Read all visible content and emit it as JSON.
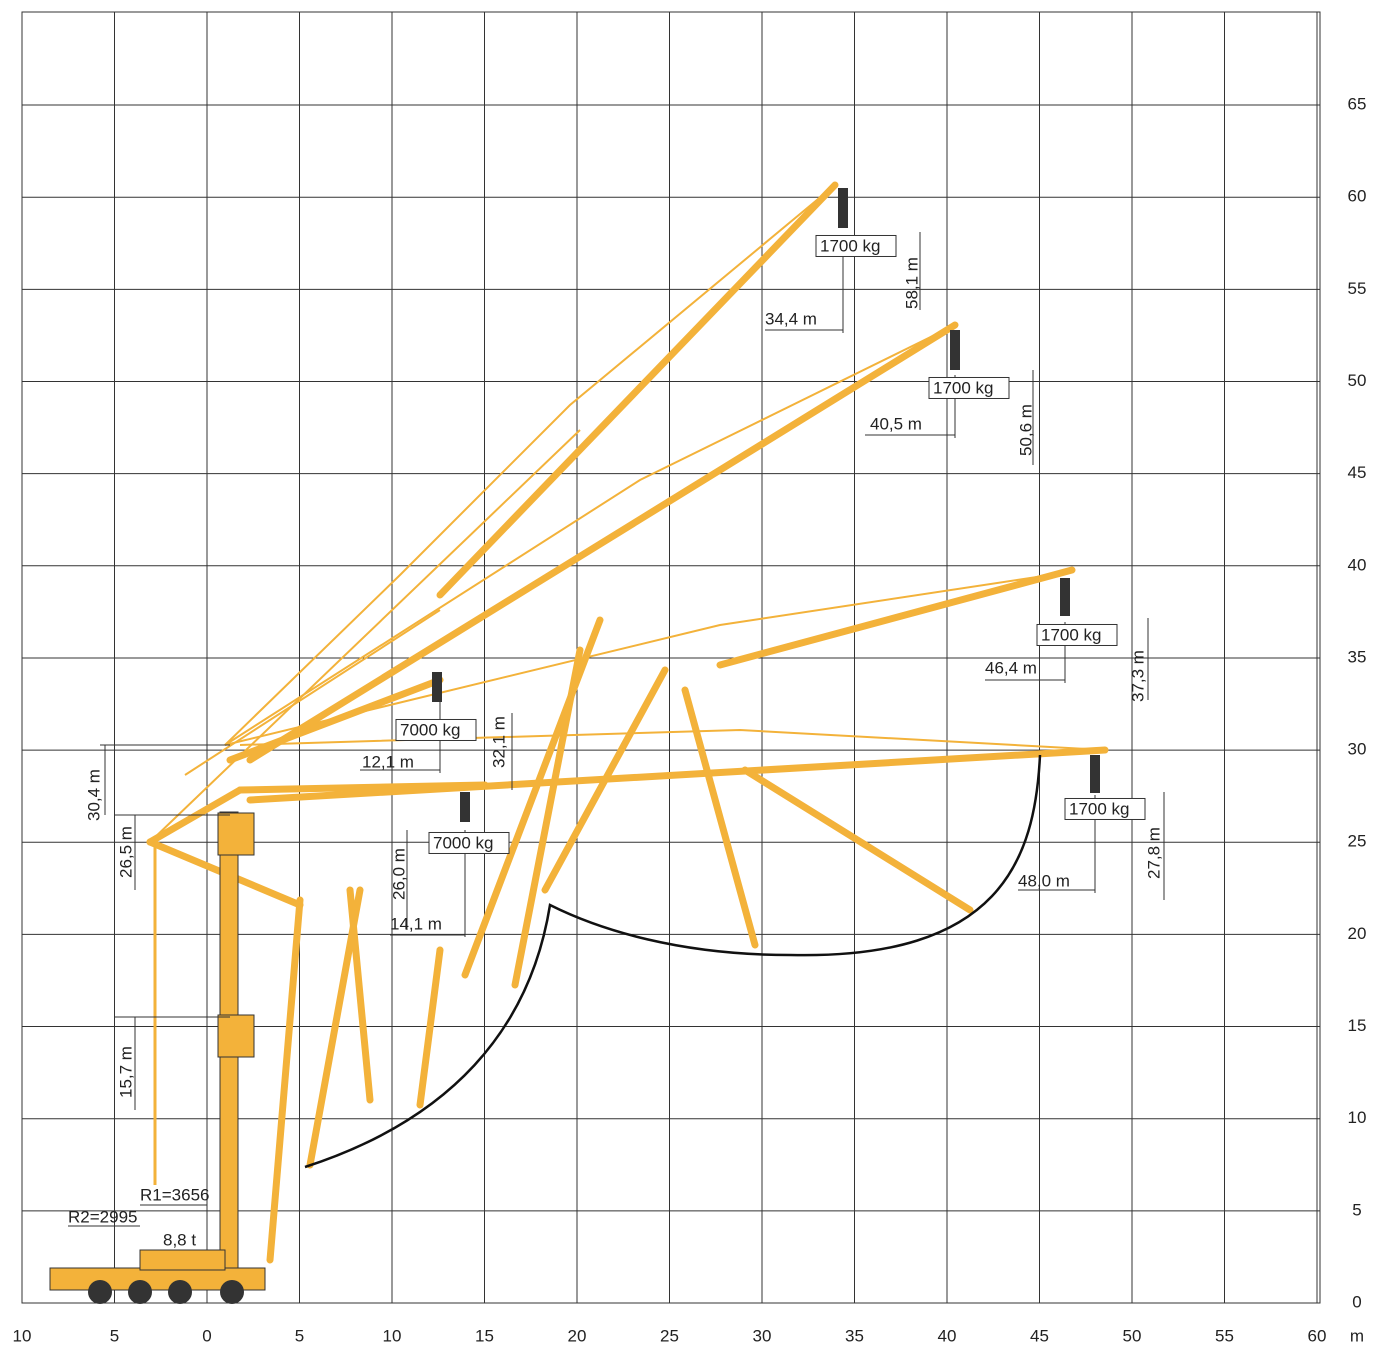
{
  "x_axis": {
    "ticks": [
      {
        "value": -10,
        "label": "10"
      },
      {
        "value": -5,
        "label": "5"
      },
      0,
      5,
      10,
      15,
      20,
      25,
      30,
      35,
      40,
      45,
      50,
      55,
      60
    ],
    "unit": "m"
  },
  "y_axis": {
    "ticks": [
      0,
      5,
      10,
      15,
      20,
      25,
      30,
      35,
      40,
      45,
      50,
      55,
      60,
      65
    ]
  },
  "annotations": [
    {
      "text": "1700 kg",
      "boxed": true
    },
    {
      "text": "34,4 m"
    },
    {
      "text": "58,1 m",
      "vertical": true
    },
    {
      "text": "1700 kg",
      "boxed": true
    },
    {
      "text": "40,5 m"
    },
    {
      "text": "50,6 m",
      "vertical": true
    },
    {
      "text": "1700 kg",
      "boxed": true
    },
    {
      "text": "46,4 m"
    },
    {
      "text": "37,3 m",
      "vertical": true
    },
    {
      "text": "1700 kg",
      "boxed": true
    },
    {
      "text": "48,0 m"
    },
    {
      "text": "27,8 m",
      "vertical": true
    },
    {
      "text": "7000 kg",
      "boxed": true
    },
    {
      "text": "12,1 m"
    },
    {
      "text": "32,1 m",
      "vertical": true
    },
    {
      "text": "7000 kg",
      "boxed": true
    },
    {
      "text": "14,1 m"
    },
    {
      "text": "26,0 m",
      "vertical": true
    },
    {
      "text": "30,4 m",
      "vertical": true
    },
    {
      "text": "26,5 m",
      "vertical": true
    },
    {
      "text": "15,7 m",
      "vertical": true
    },
    {
      "text": "R1=3656"
    },
    {
      "text": "R2=2995"
    },
    {
      "text": "8,8 t"
    }
  ]
}
